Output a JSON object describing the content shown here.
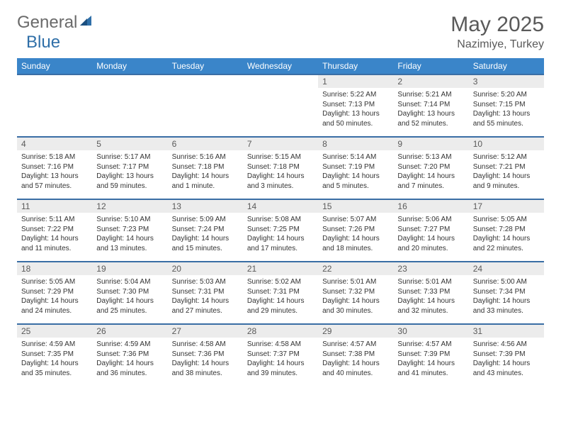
{
  "logo": {
    "text1": "General",
    "text2": "Blue",
    "shape_color": "#2f6fa8"
  },
  "title": "May 2025",
  "location": "Nazimiye, Turkey",
  "colors": {
    "header_bg": "#3a85c9",
    "header_fg": "#ffffff",
    "row_border": "#3a6ea5",
    "daynum_bg": "#ececec",
    "text": "#333333",
    "title_color": "#5a5a5a"
  },
  "typography": {
    "title_fontsize": 30,
    "location_fontsize": 16,
    "dayheader_fontsize": 12,
    "daynum_fontsize": 12,
    "body_fontsize": 10
  },
  "day_headers": [
    "Sunday",
    "Monday",
    "Tuesday",
    "Wednesday",
    "Thursday",
    "Friday",
    "Saturday"
  ],
  "weeks": [
    [
      null,
      null,
      null,
      null,
      {
        "day": "1",
        "sunrise": "Sunrise: 5:22 AM",
        "sunset": "Sunset: 7:13 PM",
        "daylight": "Daylight: 13 hours and 50 minutes."
      },
      {
        "day": "2",
        "sunrise": "Sunrise: 5:21 AM",
        "sunset": "Sunset: 7:14 PM",
        "daylight": "Daylight: 13 hours and 52 minutes."
      },
      {
        "day": "3",
        "sunrise": "Sunrise: 5:20 AM",
        "sunset": "Sunset: 7:15 PM",
        "daylight": "Daylight: 13 hours and 55 minutes."
      }
    ],
    [
      {
        "day": "4",
        "sunrise": "Sunrise: 5:18 AM",
        "sunset": "Sunset: 7:16 PM",
        "daylight": "Daylight: 13 hours and 57 minutes."
      },
      {
        "day": "5",
        "sunrise": "Sunrise: 5:17 AM",
        "sunset": "Sunset: 7:17 PM",
        "daylight": "Daylight: 13 hours and 59 minutes."
      },
      {
        "day": "6",
        "sunrise": "Sunrise: 5:16 AM",
        "sunset": "Sunset: 7:18 PM",
        "daylight": "Daylight: 14 hours and 1 minute."
      },
      {
        "day": "7",
        "sunrise": "Sunrise: 5:15 AM",
        "sunset": "Sunset: 7:18 PM",
        "daylight": "Daylight: 14 hours and 3 minutes."
      },
      {
        "day": "8",
        "sunrise": "Sunrise: 5:14 AM",
        "sunset": "Sunset: 7:19 PM",
        "daylight": "Daylight: 14 hours and 5 minutes."
      },
      {
        "day": "9",
        "sunrise": "Sunrise: 5:13 AM",
        "sunset": "Sunset: 7:20 PM",
        "daylight": "Daylight: 14 hours and 7 minutes."
      },
      {
        "day": "10",
        "sunrise": "Sunrise: 5:12 AM",
        "sunset": "Sunset: 7:21 PM",
        "daylight": "Daylight: 14 hours and 9 minutes."
      }
    ],
    [
      {
        "day": "11",
        "sunrise": "Sunrise: 5:11 AM",
        "sunset": "Sunset: 7:22 PM",
        "daylight": "Daylight: 14 hours and 11 minutes."
      },
      {
        "day": "12",
        "sunrise": "Sunrise: 5:10 AM",
        "sunset": "Sunset: 7:23 PM",
        "daylight": "Daylight: 14 hours and 13 minutes."
      },
      {
        "day": "13",
        "sunrise": "Sunrise: 5:09 AM",
        "sunset": "Sunset: 7:24 PM",
        "daylight": "Daylight: 14 hours and 15 minutes."
      },
      {
        "day": "14",
        "sunrise": "Sunrise: 5:08 AM",
        "sunset": "Sunset: 7:25 PM",
        "daylight": "Daylight: 14 hours and 17 minutes."
      },
      {
        "day": "15",
        "sunrise": "Sunrise: 5:07 AM",
        "sunset": "Sunset: 7:26 PM",
        "daylight": "Daylight: 14 hours and 18 minutes."
      },
      {
        "day": "16",
        "sunrise": "Sunrise: 5:06 AM",
        "sunset": "Sunset: 7:27 PM",
        "daylight": "Daylight: 14 hours and 20 minutes."
      },
      {
        "day": "17",
        "sunrise": "Sunrise: 5:05 AM",
        "sunset": "Sunset: 7:28 PM",
        "daylight": "Daylight: 14 hours and 22 minutes."
      }
    ],
    [
      {
        "day": "18",
        "sunrise": "Sunrise: 5:05 AM",
        "sunset": "Sunset: 7:29 PM",
        "daylight": "Daylight: 14 hours and 24 minutes."
      },
      {
        "day": "19",
        "sunrise": "Sunrise: 5:04 AM",
        "sunset": "Sunset: 7:30 PM",
        "daylight": "Daylight: 14 hours and 25 minutes."
      },
      {
        "day": "20",
        "sunrise": "Sunrise: 5:03 AM",
        "sunset": "Sunset: 7:31 PM",
        "daylight": "Daylight: 14 hours and 27 minutes."
      },
      {
        "day": "21",
        "sunrise": "Sunrise: 5:02 AM",
        "sunset": "Sunset: 7:31 PM",
        "daylight": "Daylight: 14 hours and 29 minutes."
      },
      {
        "day": "22",
        "sunrise": "Sunrise: 5:01 AM",
        "sunset": "Sunset: 7:32 PM",
        "daylight": "Daylight: 14 hours and 30 minutes."
      },
      {
        "day": "23",
        "sunrise": "Sunrise: 5:01 AM",
        "sunset": "Sunset: 7:33 PM",
        "daylight": "Daylight: 14 hours and 32 minutes."
      },
      {
        "day": "24",
        "sunrise": "Sunrise: 5:00 AM",
        "sunset": "Sunset: 7:34 PM",
        "daylight": "Daylight: 14 hours and 33 minutes."
      }
    ],
    [
      {
        "day": "25",
        "sunrise": "Sunrise: 4:59 AM",
        "sunset": "Sunset: 7:35 PM",
        "daylight": "Daylight: 14 hours and 35 minutes."
      },
      {
        "day": "26",
        "sunrise": "Sunrise: 4:59 AM",
        "sunset": "Sunset: 7:36 PM",
        "daylight": "Daylight: 14 hours and 36 minutes."
      },
      {
        "day": "27",
        "sunrise": "Sunrise: 4:58 AM",
        "sunset": "Sunset: 7:36 PM",
        "daylight": "Daylight: 14 hours and 38 minutes."
      },
      {
        "day": "28",
        "sunrise": "Sunrise: 4:58 AM",
        "sunset": "Sunset: 7:37 PM",
        "daylight": "Daylight: 14 hours and 39 minutes."
      },
      {
        "day": "29",
        "sunrise": "Sunrise: 4:57 AM",
        "sunset": "Sunset: 7:38 PM",
        "daylight": "Daylight: 14 hours and 40 minutes."
      },
      {
        "day": "30",
        "sunrise": "Sunrise: 4:57 AM",
        "sunset": "Sunset: 7:39 PM",
        "daylight": "Daylight: 14 hours and 41 minutes."
      },
      {
        "day": "31",
        "sunrise": "Sunrise: 4:56 AM",
        "sunset": "Sunset: 7:39 PM",
        "daylight": "Daylight: 14 hours and 43 minutes."
      }
    ]
  ]
}
